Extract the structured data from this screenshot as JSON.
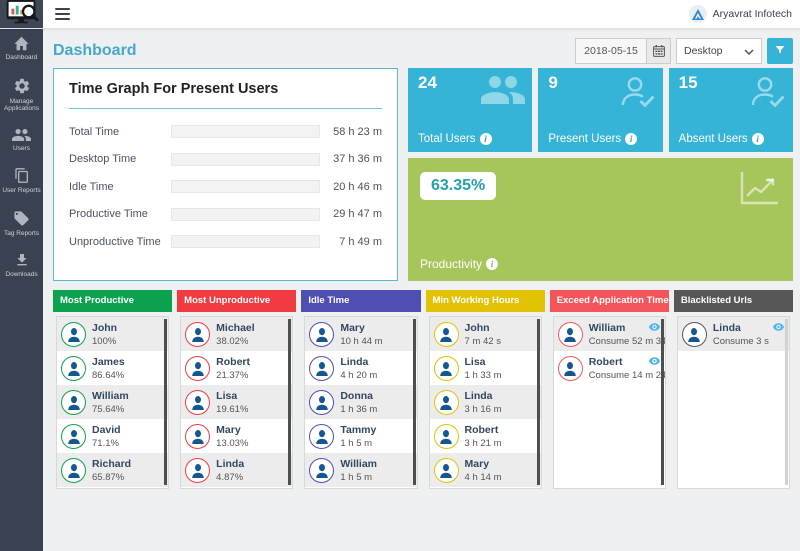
{
  "topbar": {
    "brand": "Aryavrat Infotech"
  },
  "icons": {
    "info": "i"
  },
  "page": {
    "title": "Dashboard"
  },
  "filters": {
    "date": "2018-05-15",
    "device": "Desktop"
  },
  "sidebar": {
    "items": [
      {
        "label": "Dashboard"
      },
      {
        "label": "Manage Applications"
      },
      {
        "label": "Users"
      },
      {
        "label": "User Reports"
      },
      {
        "label": "Tag Reports"
      },
      {
        "label": "Downloads"
      }
    ]
  },
  "time_graph": {
    "title": "Time Graph For Present Users",
    "rows": [
      {
        "label": "Total Time",
        "value": "58 h 23 m",
        "pct": 85
      },
      {
        "label": "Desktop Time",
        "value": "37 h 36 m",
        "pct": 55
      },
      {
        "label": "Idle Time",
        "value": "20 h 46 m",
        "pct": 30
      },
      {
        "label": "Productive Time",
        "value": "29 h 47 m",
        "pct": 43.5
      },
      {
        "label": "Unproductive Time",
        "value": "7 h 49 m",
        "pct": 11.5
      }
    ]
  },
  "stats": [
    {
      "value": "24",
      "label": "Total Users"
    },
    {
      "value": "9",
      "label": "Present Users"
    },
    {
      "value": "15",
      "label": "Absent Users"
    }
  ],
  "productivity": {
    "value": "63.35%",
    "label": "Productivity"
  },
  "columns": [
    {
      "title": "Most Productive",
      "color": "#0ca24f",
      "scrollbar": "dark",
      "rows": [
        {
          "name": "John",
          "value": "100%"
        },
        {
          "name": "James",
          "value": "86.64%"
        },
        {
          "name": "William",
          "value": "75.64%"
        },
        {
          "name": "David",
          "value": "71.1%"
        },
        {
          "name": "Richard",
          "value": "65.87%"
        }
      ]
    },
    {
      "title": "Most Unproductive",
      "color": "#f23b41",
      "scrollbar": "dark",
      "rows": [
        {
          "name": "Michael",
          "value": "38.02%"
        },
        {
          "name": "Robert",
          "value": "21.37%"
        },
        {
          "name": "Lisa",
          "value": "19.61%"
        },
        {
          "name": "Mary",
          "value": "13.03%"
        },
        {
          "name": "Linda",
          "value": "4.87%"
        }
      ]
    },
    {
      "title": "Idle Time",
      "color": "#4e4fb0",
      "scrollbar": "dark",
      "rows": [
        {
          "name": "Mary",
          "value": "10 h 44 m"
        },
        {
          "name": "Linda",
          "value": "4 h 20 m"
        },
        {
          "name": "Donna",
          "value": "1 h 36 m"
        },
        {
          "name": "Tammy",
          "value": "1 h 5 m"
        },
        {
          "name": "William",
          "value": "1 h 5 m"
        }
      ]
    },
    {
      "title": "Min Working Hours",
      "color": "#e2c303",
      "scrollbar": "dark",
      "rows": [
        {
          "name": "John",
          "value": "7 m 42 s"
        },
        {
          "name": "Lisa",
          "value": "1 h 33 m"
        },
        {
          "name": "Linda",
          "value": "3 h 16 m"
        },
        {
          "name": "Robert",
          "value": "3 h 21 m"
        },
        {
          "name": "Mary",
          "value": "4 h 14 m"
        }
      ]
    },
    {
      "title": "Exceed Application Time",
      "color": "#f4555a",
      "scrollbar": "dark",
      "rows": [
        {
          "name": "William",
          "value": "Consume 52 m 34",
          "eye": true
        },
        {
          "name": "Robert",
          "value": "Consume 14 m 24",
          "eye": true
        }
      ]
    },
    {
      "title": "Blacklisted Urls",
      "color": "#575757",
      "scrollbar": "light",
      "rows": [
        {
          "name": "Linda",
          "value": "Consume 3 s",
          "eye": true
        }
      ]
    }
  ],
  "colors": {
    "accent_blue": "#35b4d8",
    "bar_blue": "#29a9db",
    "green_card": "#a6c55b",
    "productivity_text": "#22a3a8",
    "sidebar_bg": "#3a4150",
    "title_teal": "#46a8c8"
  }
}
